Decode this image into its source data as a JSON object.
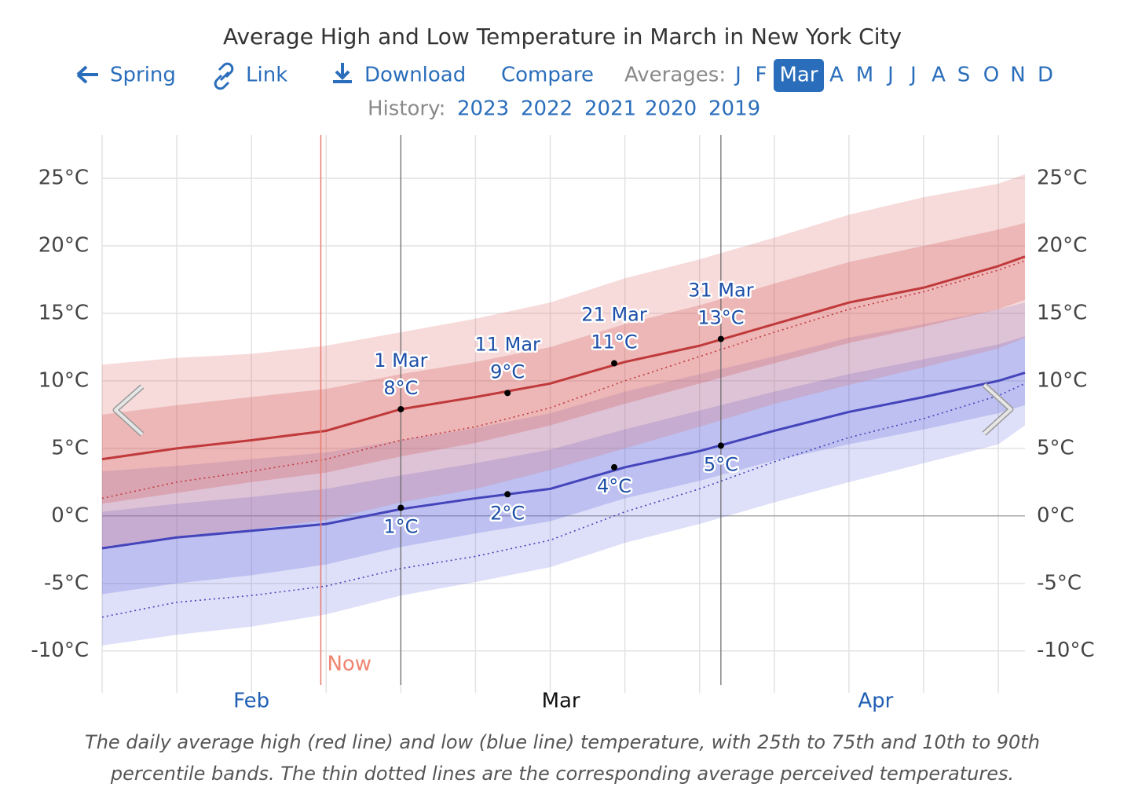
{
  "nav": {
    "back": "Spring",
    "link": "Link",
    "download": "Download",
    "compare": "Compare",
    "averages_label": "Averages:",
    "months": [
      {
        "label": "J"
      },
      {
        "label": "F"
      },
      {
        "label": "Mar",
        "selected": true
      },
      {
        "label": "A"
      },
      {
        "label": "M"
      },
      {
        "label": "J"
      },
      {
        "label": "J"
      },
      {
        "label": "A"
      },
      {
        "label": "S"
      },
      {
        "label": "O"
      },
      {
        "label": "N"
      },
      {
        "label": "D"
      }
    ],
    "history_label": "History:",
    "years": [
      "2023",
      "2022",
      "2021",
      "2020",
      "2019"
    ]
  },
  "chart_data": {
    "type": "band-line",
    "title": "Average High and Low Temperature in March in New York City",
    "x": [
      32,
      39,
      46,
      53,
      60,
      67,
      74,
      81,
      88,
      95,
      102,
      109,
      116,
      118.5
    ],
    "xlim": [
      32,
      118.5
    ],
    "xticks": [
      {
        "value": 46,
        "label": "Feb"
      },
      {
        "value": 75,
        "label": "Mar"
      },
      {
        "value": 104.5,
        "label": "Apr"
      }
    ],
    "xtick_colors": [
      "#1f5fb4",
      "#111111",
      "#1f5fb4"
    ],
    "xgrid": [
      32,
      39,
      46,
      53,
      60,
      67,
      74,
      81,
      88,
      95,
      102,
      109,
      116
    ],
    "ylim": [
      -13.1,
      28.2
    ],
    "yticks": [
      {
        "value": -10,
        "label": "-10°C"
      },
      {
        "value": -5,
        "label": "-5°C"
      },
      {
        "value": 0,
        "label": "0°C"
      },
      {
        "value": 5,
        "label": "5°C"
      },
      {
        "value": 10,
        "label": "10°C"
      },
      {
        "value": 15,
        "label": "15°C"
      },
      {
        "value": 20,
        "label": "20°C"
      },
      {
        "value": 25,
        "label": "25°C"
      }
    ],
    "grid": true,
    "bands": [
      {
        "color": "#6b6fe0",
        "opacity": 0.22,
        "lower": [
          -9.6,
          -8.8,
          -8.2,
          -7.3,
          -5.9,
          -4.9,
          -3.8,
          -2.0,
          -0.6,
          1.0,
          2.5,
          3.9,
          5.3,
          6.7
        ],
        "upper": [
          3.3,
          3.7,
          4.2,
          4.7,
          5.6,
          6.5,
          7.6,
          9.2,
          10.5,
          11.8,
          13.2,
          14.2,
          15.3,
          15.8
        ]
      },
      {
        "color": "#5a62d8",
        "opacity": 0.25,
        "lower": [
          -5.8,
          -5.0,
          -4.4,
          -3.6,
          -2.3,
          -1.3,
          -0.4,
          1.3,
          2.6,
          4.1,
          5.3,
          6.4,
          7.6,
          8.2
        ],
        "upper": [
          0.3,
          0.9,
          1.4,
          2.0,
          3.0,
          3.9,
          4.9,
          6.4,
          7.8,
          9.2,
          10.5,
          11.6,
          12.7,
          13.3
        ]
      },
      {
        "color": "#e07070",
        "opacity": 0.25,
        "lower": [
          -2.4,
          -1.7,
          -1.0,
          -0.3,
          1.0,
          2.0,
          3.4,
          5.0,
          6.6,
          8.3,
          9.7,
          11.0,
          12.4,
          13.2
        ],
        "upper": [
          11.2,
          11.7,
          12.0,
          12.6,
          13.6,
          14.6,
          15.8,
          17.6,
          19.0,
          20.6,
          22.3,
          23.6,
          24.6,
          25.3
        ]
      },
      {
        "color": "#d04a4a",
        "opacity": 0.25,
        "lower": [
          0.9,
          1.7,
          2.5,
          3.2,
          4.4,
          5.4,
          6.7,
          8.3,
          9.8,
          11.3,
          12.8,
          14.0,
          15.3,
          16.0
        ],
        "upper": [
          7.5,
          8.2,
          8.8,
          9.4,
          10.5,
          11.4,
          12.5,
          14.2,
          15.6,
          17.2,
          18.8,
          20.0,
          21.2,
          21.7
        ]
      }
    ],
    "series": [
      {
        "color": "#c0393b",
        "style": "solid",
        "values": [
          4.2,
          5.0,
          5.6,
          6.3,
          7.9,
          8.8,
          9.8,
          11.4,
          12.6,
          14.2,
          15.8,
          16.9,
          18.5,
          19.2
        ]
      },
      {
        "color": "#c0393b",
        "style": "dotted",
        "values": [
          1.3,
          2.5,
          3.3,
          4.2,
          5.6,
          6.6,
          8.0,
          10.0,
          11.8,
          13.6,
          15.3,
          16.6,
          18.2,
          18.9
        ]
      },
      {
        "color": "#4444bb",
        "style": "solid",
        "values": [
          -2.4,
          -1.6,
          -1.1,
          -0.6,
          0.5,
          1.3,
          2.0,
          3.6,
          4.8,
          6.3,
          7.7,
          8.8,
          10.0,
          10.6
        ]
      },
      {
        "color": "#4444bb",
        "style": "dotted",
        "values": [
          -7.5,
          -6.4,
          -5.9,
          -5.2,
          -3.9,
          -3.0,
          -1.8,
          0.3,
          2.0,
          4.0,
          5.8,
          7.2,
          8.9,
          9.8
        ]
      }
    ],
    "markers": [
      {
        "x": 60
      },
      {
        "x": 90
      }
    ],
    "now": {
      "x": 52.5,
      "label": "Now"
    },
    "annotations": [
      {
        "x": 60,
        "y": 7.9,
        "label": "1 Mar",
        "value_label": "8°C",
        "place": "above"
      },
      {
        "x": 70,
        "y": 9.1,
        "label": "11 Mar",
        "value_label": "9°C",
        "place": "above"
      },
      {
        "x": 80,
        "y": 11.3,
        "label": "21 Mar",
        "value_label": "11°C",
        "place": "above"
      },
      {
        "x": 90,
        "y": 13.1,
        "label": "31 Mar",
        "value_label": "13°C",
        "place": "above"
      },
      {
        "x": 60,
        "y": 0.6,
        "value_label": "1°C",
        "place": "below"
      },
      {
        "x": 70,
        "y": 1.6,
        "value_label": "2°C",
        "place": "below"
      },
      {
        "x": 80,
        "y": 3.6,
        "value_label": "4°C",
        "place": "below"
      },
      {
        "x": 90,
        "y": 5.2,
        "value_label": "5°C",
        "place": "below"
      }
    ]
  },
  "caption": [
    "The daily average high (red line) and low (blue line) temperature, with 25th to 75th and 10th to 90th",
    "percentile bands. The thin dotted lines are the corresponding average perceived temperatures."
  ]
}
